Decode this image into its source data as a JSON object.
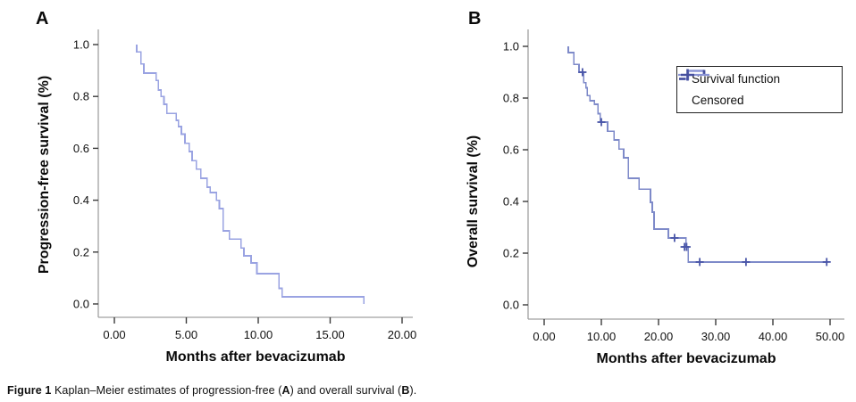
{
  "panels": [
    {
      "label": "A",
      "y_title": "Progression-free survival (%)",
      "x_title": "Months after bevacizumab"
    },
    {
      "label": "B",
      "y_title": "Overall survival (%)",
      "x_title": "Months after bevacizumab",
      "legend": {
        "survival_label": "Survival function",
        "censored_label": "Censored"
      }
    }
  ],
  "caption": {
    "parts": [
      {
        "text": "Figure 1 "
      },
      {
        "text": "Kaplan–Meier estimates of progression-free ("
      },
      {
        "text": "A"
      },
      {
        "text": ") and overall survival ("
      },
      {
        "text": "B"
      },
      {
        "text": ")."
      }
    ]
  },
  "colors": {
    "curve_a": "#9aa3e2",
    "curve_b": "#7e8ac9",
    "censor": "#4a56a8",
    "legend_glyph_light": "#8a94d6",
    "legend_glyph_dark": "#46509f",
    "axis_line": "#a0a0a0",
    "tick": "#3a3a3a",
    "text": "#000000"
  },
  "chart_data": [
    {
      "type": "line",
      "subtype": "kaplan_meier_step",
      "panel": "A",
      "title": "Progression-free survival",
      "xlabel": "Months after bevacizumab",
      "ylabel": "Progression-free survival (%)",
      "xlim": [
        -1.1,
        20.8
      ],
      "ylim": [
        0,
        1.05
      ],
      "grid": false,
      "xticks": [
        {
          "v": 0,
          "label": "0.00"
        },
        {
          "v": 5,
          "label": "5.00"
        },
        {
          "v": 10,
          "label": "10.00"
        },
        {
          "v": 15,
          "label": "15.00"
        },
        {
          "v": 20,
          "label": "20.00"
        }
      ],
      "yticks": [
        {
          "v": 0.0,
          "label": "0.0"
        },
        {
          "v": 0.2,
          "label": "0.2"
        },
        {
          "v": 0.4,
          "label": "0.4"
        },
        {
          "v": 0.6,
          "label": "0.6"
        },
        {
          "v": 0.8,
          "label": "0.8"
        },
        {
          "v": 1.0,
          "label": "1.0"
        }
      ],
      "start_y": 1.0,
      "steps": [
        [
          1.55,
          0.972
        ],
        [
          1.85,
          0.925
        ],
        [
          2.05,
          0.89
        ],
        [
          2.9,
          0.862
        ],
        [
          3.05,
          0.825
        ],
        [
          3.25,
          0.8
        ],
        [
          3.45,
          0.77
        ],
        [
          3.65,
          0.735
        ],
        [
          4.3,
          0.708
        ],
        [
          4.45,
          0.684
        ],
        [
          4.65,
          0.655
        ],
        [
          4.9,
          0.62
        ],
        [
          5.2,
          0.588
        ],
        [
          5.4,
          0.553
        ],
        [
          5.7,
          0.52
        ],
        [
          6.0,
          0.485
        ],
        [
          6.45,
          0.45
        ],
        [
          6.65,
          0.43
        ],
        [
          7.1,
          0.4
        ],
        [
          7.3,
          0.368
        ],
        [
          7.55,
          0.282
        ],
        [
          8.0,
          0.25
        ],
        [
          8.8,
          0.216
        ],
        [
          9.0,
          0.186
        ],
        [
          9.5,
          0.158
        ],
        [
          9.9,
          0.117
        ],
        [
          11.45,
          0.06
        ],
        [
          11.65,
          0.028
        ],
        [
          17.35,
          0.0
        ]
      ],
      "tail_to": null,
      "censored": []
    },
    {
      "type": "line",
      "subtype": "kaplan_meier_step",
      "panel": "B",
      "title": "Overall survival",
      "xlabel": "Months after bevacizumab",
      "ylabel": "Overall survival (%)",
      "xlim": [
        -2.8,
        52.5
      ],
      "ylim": [
        0,
        1.05
      ],
      "grid": false,
      "legend_position": "upper right",
      "legend_entries": [
        "Survival function",
        "Censored"
      ],
      "xticks": [
        {
          "v": 0,
          "label": "0.00"
        },
        {
          "v": 10,
          "label": "10.00"
        },
        {
          "v": 20,
          "label": "20.00"
        },
        {
          "v": 30,
          "label": "30.00"
        },
        {
          "v": 40,
          "label": "40.00"
        },
        {
          "v": 50,
          "label": "50.00"
        }
      ],
      "yticks": [
        {
          "v": 0.0,
          "label": "0.0"
        },
        {
          "v": 0.2,
          "label": "0.2"
        },
        {
          "v": 0.4,
          "label": "0.4"
        },
        {
          "v": 0.6,
          "label": "0.6"
        },
        {
          "v": 0.8,
          "label": "0.8"
        },
        {
          "v": 1.0,
          "label": "1.0"
        }
      ],
      "start_y": 1.0,
      "steps": [
        [
          4.2,
          0.976
        ],
        [
          5.2,
          0.93
        ],
        [
          6.1,
          0.9
        ],
        [
          6.9,
          0.86
        ],
        [
          7.3,
          0.84
        ],
        [
          7.55,
          0.81
        ],
        [
          8.0,
          0.79
        ],
        [
          8.8,
          0.776
        ],
        [
          9.4,
          0.74
        ],
        [
          9.8,
          0.707
        ],
        [
          11.1,
          0.672
        ],
        [
          12.2,
          0.638
        ],
        [
          13.1,
          0.603
        ],
        [
          13.9,
          0.569
        ],
        [
          14.7,
          0.49
        ],
        [
          16.6,
          0.448
        ],
        [
          18.6,
          0.397
        ],
        [
          18.9,
          0.359
        ],
        [
          19.2,
          0.293
        ],
        [
          21.7,
          0.259
        ],
        [
          24.8,
          0.224
        ],
        [
          25.2,
          0.166
        ]
      ],
      "tail_to": 49.6,
      "censored": [
        [
          6.7,
          0.9
        ],
        [
          10.0,
          0.707
        ],
        [
          22.8,
          0.259
        ],
        [
          24.55,
          0.224
        ],
        [
          24.9,
          0.224
        ],
        [
          27.2,
          0.166
        ],
        [
          35.3,
          0.166
        ],
        [
          49.4,
          0.166
        ]
      ]
    }
  ]
}
